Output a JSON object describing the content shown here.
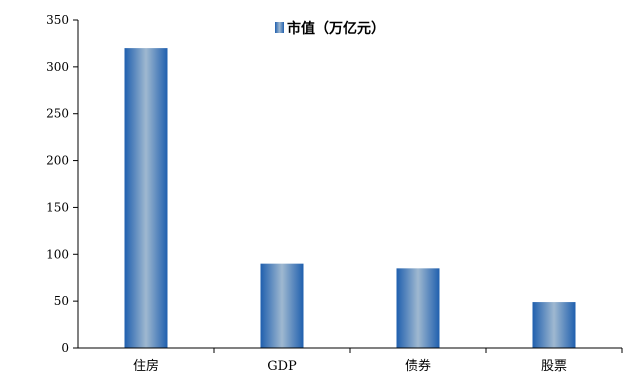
{
  "chart_data": {
    "type": "bar",
    "categories": [
      "住房",
      "GDP",
      "债券",
      "股票"
    ],
    "series": [
      {
        "name": "市值（万亿元）",
        "values": [
          320,
          90,
          85,
          49
        ]
      }
    ],
    "ylim": [
      0,
      350
    ],
    "yticks": [
      0,
      50,
      100,
      150,
      200,
      250,
      300,
      350
    ],
    "grid": false,
    "legend": "top-center",
    "colors": {
      "bar_edge": "#1f5fae",
      "bar_center": "#9fb8d0",
      "axis": "#000000"
    }
  }
}
